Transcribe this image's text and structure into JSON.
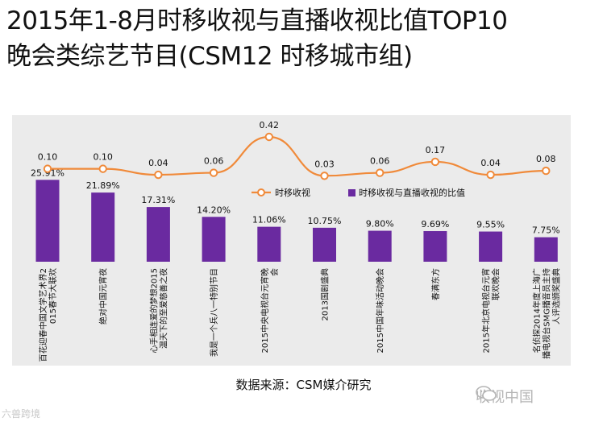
{
  "title_line1": "2015年1-8月时移收视与直播收视比值TOP10",
  "title_line2": "晚会类综艺节目(CSM12 时移城市组)",
  "source": "数据来源：CSM媒介研究",
  "watermark_left": "六兽跨境",
  "watermark_right": "收视中国",
  "colors": {
    "line": "#f08a3a",
    "bar": "#6a2aa0",
    "panel": "#ebebeb"
  },
  "chart_data": {
    "type": "bar",
    "categories": [
      "百花迎春中国文学艺术界2015春节大联欢",
      "绝对中国元宵夜",
      "心手相连爱的梦想2015温天下的至爱慈善之夜",
      "我是一个兵八一特别节目",
      "2015中央电视台元宵晚会",
      "2013国剧盛典",
      "2015中国年味活动晚会",
      "春满东方",
      "2015年北京电视台元宵联欢晚会",
      "名侦探2014年度上海广播电视台SMG播音员主持人评选颁奖盛典"
    ],
    "series": [
      {
        "name": "时移收视",
        "type": "line",
        "values": [
          0.1,
          0.1,
          0.04,
          0.06,
          0.42,
          0.03,
          0.06,
          0.17,
          0.04,
          0.08
        ],
        "labels": [
          "0.10",
          "0.10",
          "0.04",
          "0.06",
          "0.42",
          "0.03",
          "0.06",
          "0.17",
          "0.04",
          "0.08"
        ]
      },
      {
        "name": "时移收视与直播收视的比值",
        "type": "bar",
        "values": [
          25.91,
          21.89,
          17.31,
          14.2,
          11.06,
          10.75,
          9.8,
          9.69,
          9.55,
          7.75
        ],
        "labels": [
          "25.91%",
          "21.89%",
          "17.31%",
          "14.20%",
          "11.06%",
          "10.75%",
          "9.80%",
          "9.69%",
          "9.55%",
          "7.75%"
        ]
      }
    ],
    "legend": {
      "position": "top-right"
    },
    "grid": false
  }
}
